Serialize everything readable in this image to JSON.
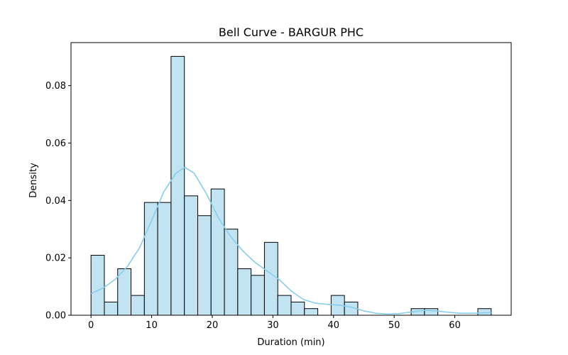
{
  "chart_data": {
    "type": "bar",
    "title": "Bell Curve - BARGUR PHC",
    "xlabel": "Duration (min)",
    "ylabel": "Density",
    "xlim": [
      -3.3,
      69.3
    ],
    "ylim": [
      0,
      0.095
    ],
    "xticks": [
      0,
      10,
      20,
      30,
      40,
      50,
      60
    ],
    "yticks": [
      0.0,
      0.02,
      0.04,
      0.06,
      0.08
    ],
    "ytick_labels": [
      "0.00",
      "0.02",
      "0.04",
      "0.06",
      "0.08"
    ],
    "grid": false,
    "bar_color": "#c2e4f2",
    "bar_edge_color": "#000000",
    "bins": [
      {
        "x0": 0.0,
        "x1": 2.2,
        "density": 0.0209
      },
      {
        "x0": 2.2,
        "x1": 4.4,
        "density": 0.0046
      },
      {
        "x0": 4.4,
        "x1": 6.6,
        "density": 0.0162
      },
      {
        "x0": 6.6,
        "x1": 8.8,
        "density": 0.0069
      },
      {
        "x0": 8.8,
        "x1": 11.0,
        "density": 0.0393
      },
      {
        "x0": 11.0,
        "x1": 13.2,
        "density": 0.0393
      },
      {
        "x0": 13.2,
        "x1": 15.4,
        "density": 0.0902
      },
      {
        "x0": 15.4,
        "x1": 17.6,
        "density": 0.0416
      },
      {
        "x0": 17.6,
        "x1": 19.8,
        "density": 0.0347
      },
      {
        "x0": 19.8,
        "x1": 22.0,
        "density": 0.044
      },
      {
        "x0": 22.0,
        "x1": 24.2,
        "density": 0.03
      },
      {
        "x0": 24.2,
        "x1": 26.4,
        "density": 0.0162
      },
      {
        "x0": 26.4,
        "x1": 28.6,
        "density": 0.0139
      },
      {
        "x0": 28.6,
        "x1": 30.8,
        "density": 0.0254
      },
      {
        "x0": 30.8,
        "x1": 33.0,
        "density": 0.0069
      },
      {
        "x0": 33.0,
        "x1": 35.2,
        "density": 0.0046
      },
      {
        "x0": 35.2,
        "x1": 37.4,
        "density": 0.0023
      },
      {
        "x0": 37.4,
        "x1": 39.6,
        "density": 0.0
      },
      {
        "x0": 39.6,
        "x1": 41.8,
        "density": 0.0069
      },
      {
        "x0": 41.8,
        "x1": 44.0,
        "density": 0.0046
      },
      {
        "x0": 44.0,
        "x1": 46.2,
        "density": 0.0
      },
      {
        "x0": 46.2,
        "x1": 48.4,
        "density": 0.0
      },
      {
        "x0": 48.4,
        "x1": 50.6,
        "density": 0.0
      },
      {
        "x0": 50.6,
        "x1": 52.8,
        "density": 0.0
      },
      {
        "x0": 52.8,
        "x1": 55.0,
        "density": 0.0023
      },
      {
        "x0": 55.0,
        "x1": 57.2,
        "density": 0.0023
      },
      {
        "x0": 57.2,
        "x1": 59.4,
        "density": 0.0
      },
      {
        "x0": 59.4,
        "x1": 61.6,
        "density": 0.0
      },
      {
        "x0": 61.6,
        "x1": 63.8,
        "density": 0.0
      },
      {
        "x0": 63.8,
        "x1": 66.0,
        "density": 0.0023
      }
    ],
    "kde": {
      "color": "#87ceeb",
      "x": [
        0,
        2,
        4,
        6,
        8,
        10,
        12,
        14,
        15.5,
        17,
        19,
        21,
        23,
        25,
        27,
        29,
        31,
        33,
        35,
        37,
        39,
        41,
        43,
        45,
        47,
        49,
        51,
        53,
        55,
        57,
        59,
        61,
        63,
        66
      ],
      "y": [
        0.0075,
        0.0095,
        0.0125,
        0.017,
        0.0235,
        0.033,
        0.043,
        0.0495,
        0.0515,
        0.0495,
        0.0425,
        0.034,
        0.0275,
        0.0225,
        0.0185,
        0.0155,
        0.0125,
        0.0085,
        0.0055,
        0.0042,
        0.0038,
        0.0035,
        0.0028,
        0.0015,
        0.0007,
        0.0004,
        0.0006,
        0.0012,
        0.0017,
        0.0015,
        0.001,
        0.0007,
        0.0007,
        0.0009
      ]
    }
  }
}
